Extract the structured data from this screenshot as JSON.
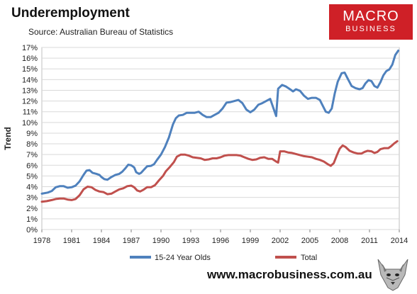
{
  "header": {
    "title": "Underemployment",
    "subtitle": "Source: Australian Bureau of Statistics"
  },
  "logo": {
    "line1": "MACRO",
    "line2": "BUSINESS"
  },
  "footer": {
    "url": "www.macrobusiness.com.au"
  },
  "chart_data": {
    "type": "line",
    "ylabel": "Trend",
    "xlabel": "",
    "xlim": [
      1978,
      2014
    ],
    "ylim": [
      0,
      17
    ],
    "x_ticks": [
      1978,
      1981,
      1984,
      1987,
      1990,
      1993,
      1996,
      1999,
      2002,
      2005,
      2008,
      2011,
      2014
    ],
    "y_ticks": [
      "0%",
      "1%",
      "2%",
      "3%",
      "4%",
      "5%",
      "6%",
      "7%",
      "8%",
      "9%",
      "10%",
      "11%",
      "12%",
      "13%",
      "14%",
      "15%",
      "16%",
      "17%"
    ],
    "grid": true,
    "legend_position": "bottom",
    "series": [
      {
        "name": "15-24 Year Olds",
        "color": "#4f81bd",
        "points": [
          [
            1978,
            3.35
          ],
          [
            1978.6,
            3.45
          ],
          [
            1979,
            3.6
          ],
          [
            1979.4,
            3.95
          ],
          [
            1979.8,
            4.05
          ],
          [
            1980.2,
            4.05
          ],
          [
            1980.6,
            3.9
          ],
          [
            1981,
            3.95
          ],
          [
            1981.4,
            4.1
          ],
          [
            1981.8,
            4.5
          ],
          [
            1982.2,
            5.1
          ],
          [
            1982.5,
            5.5
          ],
          [
            1982.8,
            5.55
          ],
          [
            1983.1,
            5.3
          ],
          [
            1983.5,
            5.2
          ],
          [
            1983.8,
            5.1
          ],
          [
            1984,
            4.9
          ],
          [
            1984.3,
            4.7
          ],
          [
            1984.6,
            4.65
          ],
          [
            1985,
            4.9
          ],
          [
            1985.4,
            5.1
          ],
          [
            1985.8,
            5.2
          ],
          [
            1986.1,
            5.4
          ],
          [
            1986.4,
            5.7
          ],
          [
            1986.7,
            6.05
          ],
          [
            1987,
            6.0
          ],
          [
            1987.3,
            5.8
          ],
          [
            1987.5,
            5.35
          ],
          [
            1987.8,
            5.2
          ],
          [
            1988,
            5.3
          ],
          [
            1988.3,
            5.6
          ],
          [
            1988.6,
            5.9
          ],
          [
            1989,
            5.95
          ],
          [
            1989.3,
            6.1
          ],
          [
            1989.6,
            6.5
          ],
          [
            1990,
            7.0
          ],
          [
            1990.4,
            7.7
          ],
          [
            1990.8,
            8.6
          ],
          [
            1991.2,
            9.8
          ],
          [
            1991.5,
            10.4
          ],
          [
            1991.8,
            10.65
          ],
          [
            1992.2,
            10.7
          ],
          [
            1992.6,
            10.9
          ],
          [
            1993,
            10.9
          ],
          [
            1993.4,
            10.9
          ],
          [
            1993.8,
            11.0
          ],
          [
            1994.2,
            10.7
          ],
          [
            1994.6,
            10.5
          ],
          [
            1995,
            10.5
          ],
          [
            1995.4,
            10.7
          ],
          [
            1995.8,
            10.9
          ],
          [
            1996.2,
            11.3
          ],
          [
            1996.6,
            11.85
          ],
          [
            1997,
            11.9
          ],
          [
            1997.4,
            12.0
          ],
          [
            1997.8,
            12.1
          ],
          [
            1998.2,
            11.8
          ],
          [
            1998.6,
            11.2
          ],
          [
            1999,
            10.95
          ],
          [
            1999.4,
            11.2
          ],
          [
            1999.8,
            11.65
          ],
          [
            2000.2,
            11.8
          ],
          [
            2000.6,
            12.0
          ],
          [
            2001,
            12.2
          ],
          [
            2001.3,
            11.4
          ],
          [
            2001.6,
            10.6
          ],
          [
            2001.8,
            13.15
          ],
          [
            2002.2,
            13.5
          ],
          [
            2002.6,
            13.35
          ],
          [
            2003,
            13.1
          ],
          [
            2003.3,
            12.9
          ],
          [
            2003.6,
            13.1
          ],
          [
            2004,
            12.95
          ],
          [
            2004.4,
            12.5
          ],
          [
            2004.8,
            12.2
          ],
          [
            2005.2,
            12.3
          ],
          [
            2005.6,
            12.3
          ],
          [
            2006,
            12.1
          ],
          [
            2006.3,
            11.55
          ],
          [
            2006.6,
            11.0
          ],
          [
            2006.9,
            10.9
          ],
          [
            2007.2,
            11.3
          ],
          [
            2007.5,
            12.7
          ],
          [
            2007.8,
            13.8
          ],
          [
            2008.2,
            14.6
          ],
          [
            2008.5,
            14.65
          ],
          [
            2008.8,
            14.1
          ],
          [
            2009.2,
            13.4
          ],
          [
            2009.6,
            13.2
          ],
          [
            2010,
            13.1
          ],
          [
            2010.3,
            13.2
          ],
          [
            2010.6,
            13.65
          ],
          [
            2010.9,
            13.95
          ],
          [
            2011.2,
            13.85
          ],
          [
            2011.5,
            13.4
          ],
          [
            2011.8,
            13.25
          ],
          [
            2012.1,
            13.75
          ],
          [
            2012.4,
            14.4
          ],
          [
            2012.7,
            14.8
          ],
          [
            2013,
            14.95
          ],
          [
            2013.3,
            15.4
          ],
          [
            2013.6,
            16.3
          ],
          [
            2013.9,
            16.7
          ]
        ]
      },
      {
        "name": "Total",
        "color": "#c0504d",
        "points": [
          [
            1978,
            2.6
          ],
          [
            1978.5,
            2.65
          ],
          [
            1979,
            2.75
          ],
          [
            1979.4,
            2.85
          ],
          [
            1979.8,
            2.9
          ],
          [
            1980.2,
            2.9
          ],
          [
            1980.6,
            2.8
          ],
          [
            1981,
            2.75
          ],
          [
            1981.4,
            2.85
          ],
          [
            1981.8,
            3.2
          ],
          [
            1982.2,
            3.75
          ],
          [
            1982.6,
            4.0
          ],
          [
            1983,
            3.95
          ],
          [
            1983.4,
            3.7
          ],
          [
            1983.8,
            3.55
          ],
          [
            1984.2,
            3.5
          ],
          [
            1984.6,
            3.3
          ],
          [
            1985,
            3.35
          ],
          [
            1985.4,
            3.55
          ],
          [
            1985.8,
            3.75
          ],
          [
            1986.2,
            3.85
          ],
          [
            1986.6,
            4.05
          ],
          [
            1987,
            4.1
          ],
          [
            1987.3,
            3.95
          ],
          [
            1987.6,
            3.65
          ],
          [
            1987.9,
            3.55
          ],
          [
            1988.2,
            3.7
          ],
          [
            1988.6,
            3.95
          ],
          [
            1989,
            3.95
          ],
          [
            1989.4,
            4.15
          ],
          [
            1989.8,
            4.6
          ],
          [
            1990.2,
            5.0
          ],
          [
            1990.5,
            5.45
          ],
          [
            1990.9,
            5.85
          ],
          [
            1991.3,
            6.3
          ],
          [
            1991.6,
            6.8
          ],
          [
            1992,
            7.0
          ],
          [
            1992.4,
            7.0
          ],
          [
            1992.8,
            6.9
          ],
          [
            1993.2,
            6.75
          ],
          [
            1993.6,
            6.7
          ],
          [
            1994,
            6.65
          ],
          [
            1994.4,
            6.5
          ],
          [
            1994.8,
            6.55
          ],
          [
            1995.2,
            6.65
          ],
          [
            1995.6,
            6.65
          ],
          [
            1996,
            6.75
          ],
          [
            1996.4,
            6.9
          ],
          [
            1996.8,
            6.95
          ],
          [
            1997.2,
            6.95
          ],
          [
            1997.6,
            6.95
          ],
          [
            1998,
            6.9
          ],
          [
            1998.4,
            6.75
          ],
          [
            1998.8,
            6.6
          ],
          [
            1999.2,
            6.5
          ],
          [
            1999.6,
            6.55
          ],
          [
            2000,
            6.7
          ],
          [
            2000.4,
            6.75
          ],
          [
            2000.8,
            6.6
          ],
          [
            2001.2,
            6.6
          ],
          [
            2001.6,
            6.35
          ],
          [
            2001.8,
            6.25
          ],
          [
            2002,
            7.3
          ],
          [
            2002.4,
            7.3
          ],
          [
            2002.8,
            7.2
          ],
          [
            2003.2,
            7.15
          ],
          [
            2003.6,
            7.05
          ],
          [
            2004,
            6.95
          ],
          [
            2004.4,
            6.85
          ],
          [
            2004.8,
            6.8
          ],
          [
            2005.2,
            6.75
          ],
          [
            2005.6,
            6.6
          ],
          [
            2006,
            6.5
          ],
          [
            2006.4,
            6.35
          ],
          [
            2006.8,
            6.1
          ],
          [
            2007.1,
            5.95
          ],
          [
            2007.4,
            6.2
          ],
          [
            2007.7,
            6.9
          ],
          [
            2008,
            7.55
          ],
          [
            2008.3,
            7.85
          ],
          [
            2008.6,
            7.7
          ],
          [
            2009,
            7.35
          ],
          [
            2009.4,
            7.2
          ],
          [
            2009.8,
            7.1
          ],
          [
            2010.2,
            7.1
          ],
          [
            2010.5,
            7.25
          ],
          [
            2010.8,
            7.35
          ],
          [
            2011.2,
            7.3
          ],
          [
            2011.5,
            7.15
          ],
          [
            2011.8,
            7.25
          ],
          [
            2012.1,
            7.5
          ],
          [
            2012.5,
            7.6
          ],
          [
            2012.9,
            7.6
          ],
          [
            2013.2,
            7.8
          ],
          [
            2013.5,
            8.05
          ],
          [
            2013.8,
            8.25
          ]
        ]
      }
    ]
  }
}
